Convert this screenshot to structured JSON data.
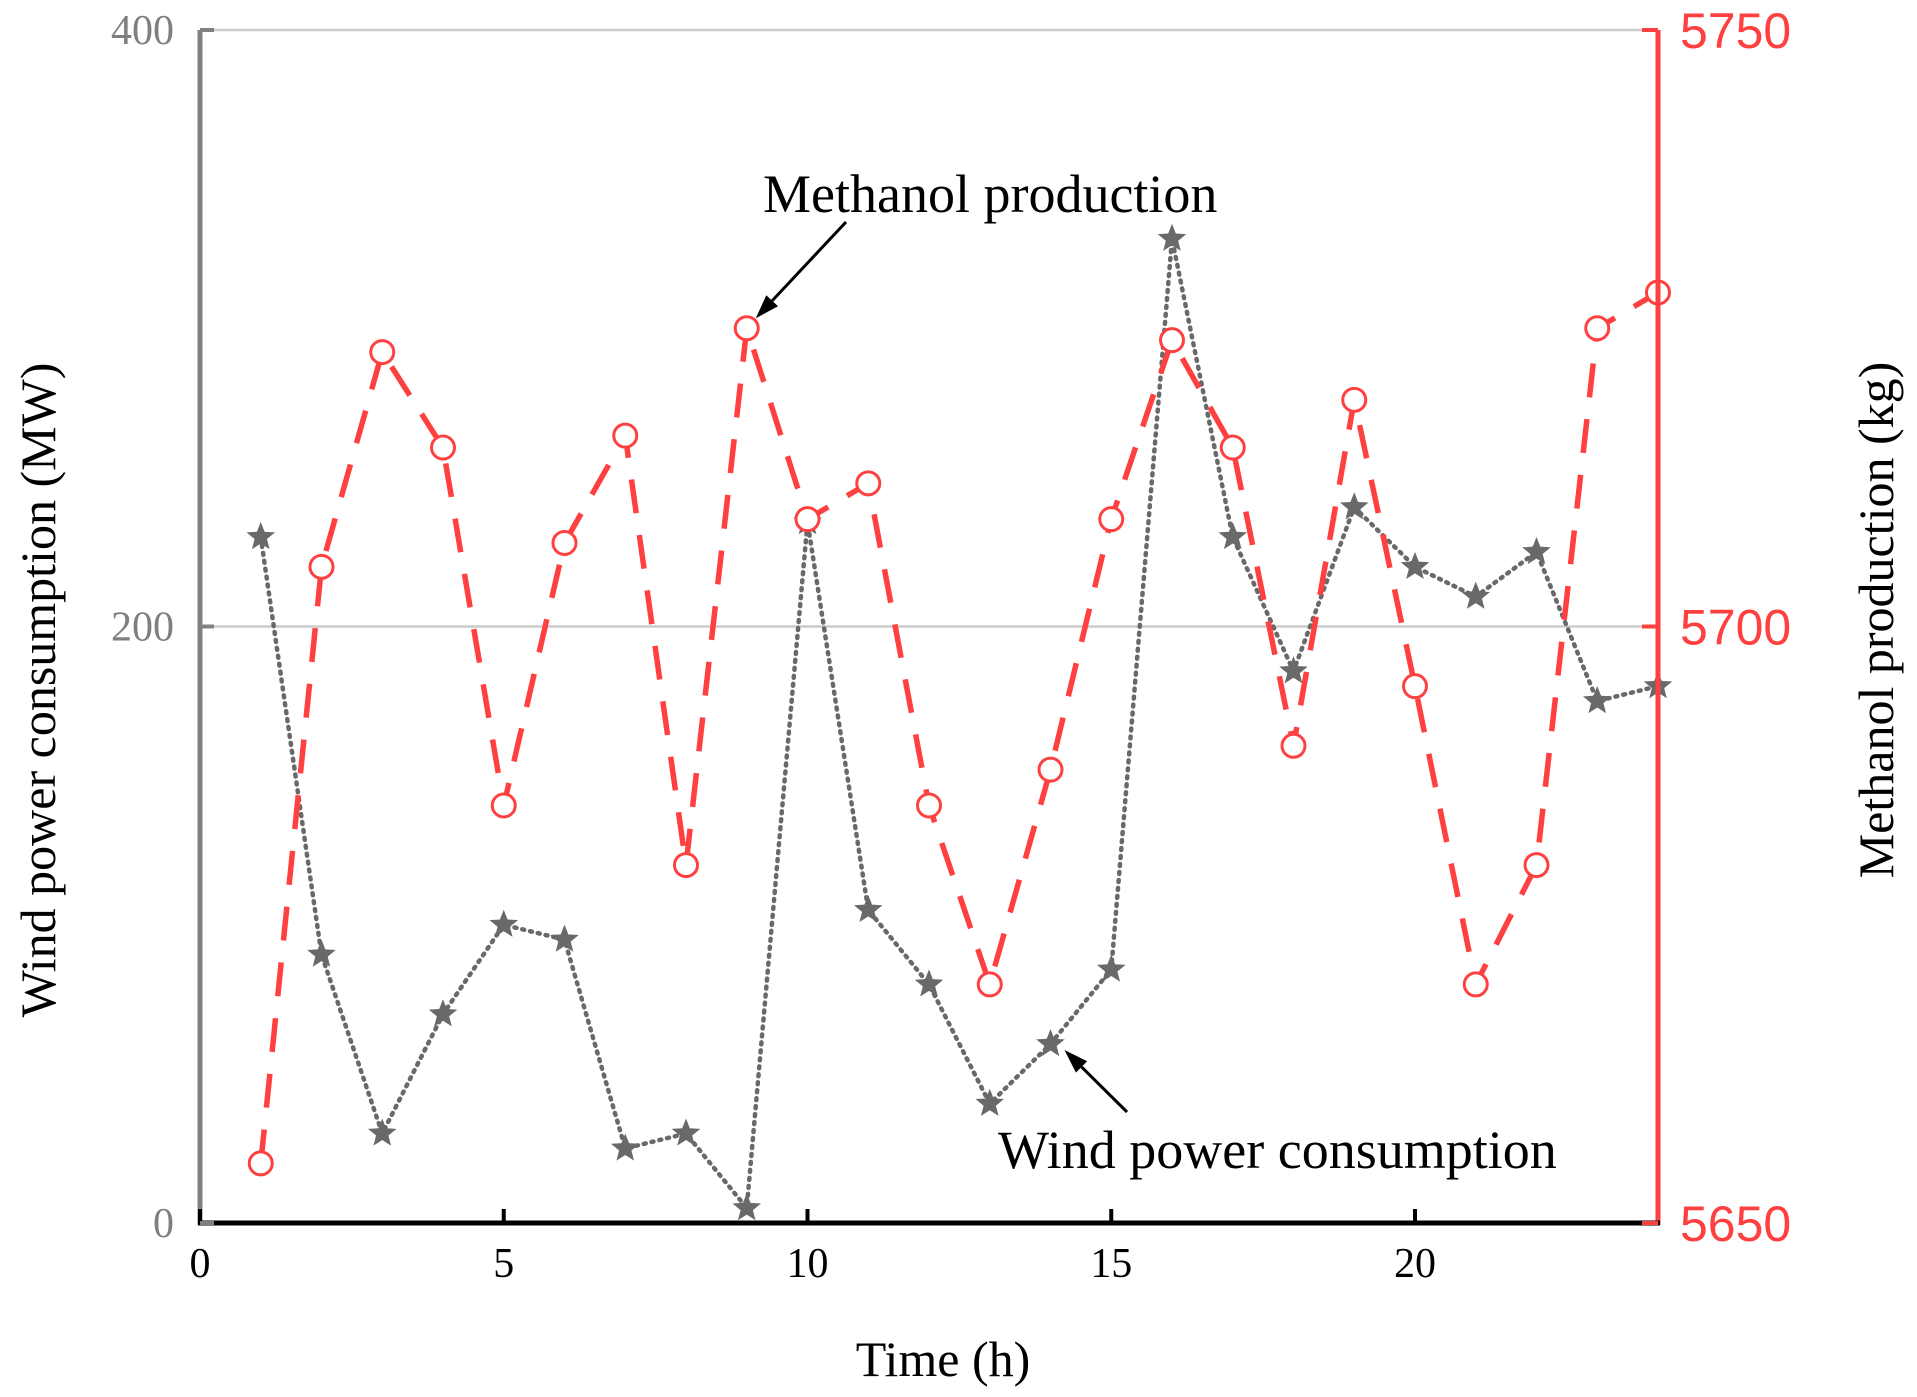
{
  "chart_data": {
    "type": "line",
    "title": "",
    "xlabel": "Time (h)",
    "ylabel_left": "Wind power consumption (MW)",
    "ylabel_right": "Methanol production (kg)",
    "xlim": [
      0,
      24
    ],
    "ylim_left": [
      0,
      400
    ],
    "ylim_right": [
      5650,
      5750
    ],
    "x_ticks": [
      0,
      5,
      10,
      15,
      20
    ],
    "y_ticks_left": [
      0,
      200,
      400
    ],
    "y_ticks_right": [
      5650,
      5700,
      5750
    ],
    "grid": "horizontal",
    "colors": {
      "wind": "#696969",
      "methanol": "#ff4040",
      "left_axis": "#808080",
      "right_axis": "#ff4040",
      "grid": "#cccccc"
    },
    "x": [
      1,
      2,
      3,
      4,
      5,
      6,
      7,
      8,
      9,
      10,
      11,
      12,
      13,
      14,
      15,
      16,
      17,
      18,
      19,
      20,
      21,
      22,
      23,
      24
    ],
    "series": [
      {
        "name": "Wind power consumption",
        "axis": "left",
        "marker": "star",
        "style": "dotted",
        "values": [
          230,
          90,
          30,
          70,
          100,
          95,
          25,
          30,
          5,
          235,
          105,
          80,
          40,
          60,
          85,
          330,
          230,
          185,
          240,
          220,
          210,
          225,
          175,
          180
        ]
      },
      {
        "name": "Methanol production",
        "axis": "right",
        "marker": "circle",
        "style": "dashed",
        "values": [
          5655,
          5705,
          5723,
          5715,
          5685,
          5707,
          5716,
          5680,
          5725,
          5709,
          5712,
          5685,
          5670,
          5688,
          5709,
          5724,
          5715,
          5690,
          5719,
          5695,
          5670,
          5680,
          5725,
          5728
        ]
      }
    ],
    "annotations": [
      {
        "text": "Methanol production",
        "series": "Methanol production",
        "point_x": 9
      },
      {
        "text": "Wind power consumption",
        "series": "Wind power consumption",
        "point_x": 14
      }
    ]
  }
}
